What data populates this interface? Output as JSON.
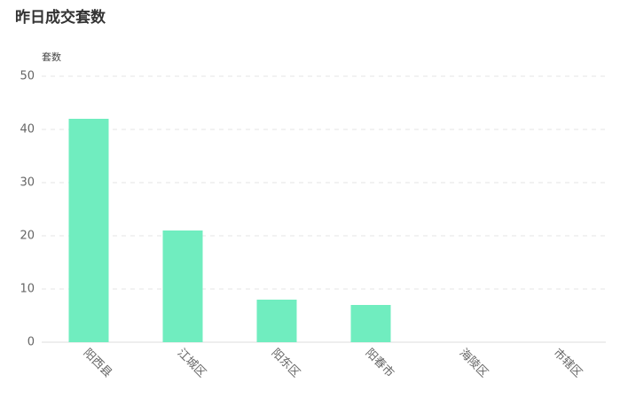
{
  "chart_data": {
    "type": "bar",
    "title": "昨日成交套数",
    "y_label": "套数",
    "categories": [
      "阳西县",
      "江城区",
      "阳东区",
      "阳春市",
      "海陵区",
      "市辖区"
    ],
    "values": [
      42,
      21,
      8,
      7,
      0,
      0
    ],
    "color": "#70edbf",
    "ylim": [
      0,
      50
    ],
    "yticks": [
      0,
      10,
      20,
      30,
      40,
      50
    ],
    "grid": true
  }
}
